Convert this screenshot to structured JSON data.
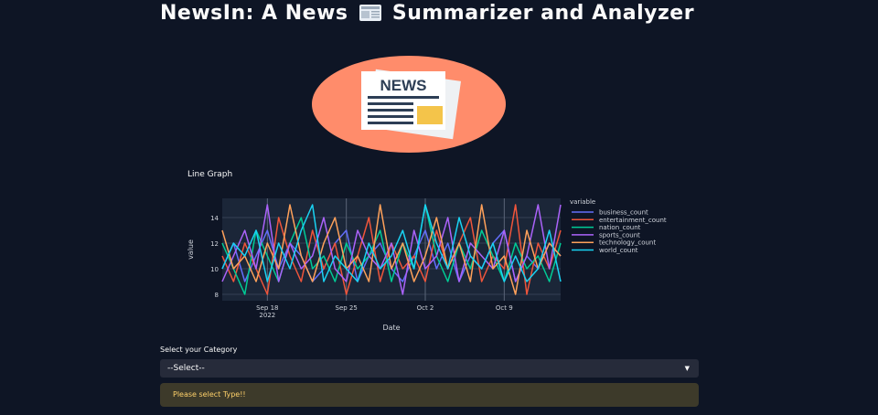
{
  "page": {
    "title_part1": "NewsIn: A News",
    "title_part2": "Summarizer and Analyzer",
    "logo_text": "NEWS"
  },
  "chart_title": "Line Graph",
  "category_select": {
    "label": "Select your Category",
    "value": "--Select--"
  },
  "alert": {
    "message": "Please select Type!!"
  },
  "colors": {
    "background": "#0e1525",
    "plot_background": "#1b2638",
    "logo_circle": "#ff8c6b",
    "alert_text": "#ffd16a",
    "alert_background": "#3d3a2a"
  },
  "icons": {
    "title_emoji": "newspaper-icon",
    "select_arrow": "caret-down-icon"
  },
  "chart_data": {
    "type": "line",
    "xlabel": "Date",
    "ylabel": "value",
    "legend_title": "variable",
    "legend_position": "right",
    "ylim": [
      7.5,
      15.5
    ],
    "y_ticks": [
      8,
      10,
      12,
      14
    ],
    "x_ticks": [
      {
        "date": "2022-09-18",
        "label": "Sep 18",
        "sublabel": "2022"
      },
      {
        "date": "2022-09-25",
        "label": "Sep 25",
        "sublabel": ""
      },
      {
        "date": "2022-10-02",
        "label": "Oct 2",
        "sublabel": ""
      },
      {
        "date": "2022-10-09",
        "label": "Oct 9",
        "sublabel": ""
      }
    ],
    "x": [
      "2022-09-14",
      "2022-09-15",
      "2022-09-16",
      "2022-09-17",
      "2022-09-18",
      "2022-09-19",
      "2022-09-20",
      "2022-09-21",
      "2022-09-22",
      "2022-09-23",
      "2022-09-24",
      "2022-09-25",
      "2022-09-26",
      "2022-09-27",
      "2022-09-28",
      "2022-09-29",
      "2022-09-30",
      "2022-10-01",
      "2022-10-02",
      "2022-10-03",
      "2022-10-04",
      "2022-10-05",
      "2022-10-06",
      "2022-10-07",
      "2022-10-08",
      "2022-10-09",
      "2022-10-10",
      "2022-10-11",
      "2022-10-12",
      "2022-10-13",
      "2022-10-14"
    ],
    "series": [
      {
        "name": "business_count",
        "color": "#636efa",
        "values": [
          10,
          12,
          9,
          11,
          13,
          10,
          12,
          11,
          9,
          10,
          12,
          13,
          9,
          11,
          12,
          10,
          9,
          11,
          13,
          10,
          12,
          9,
          11,
          10,
          12,
          13,
          9,
          11,
          10,
          12,
          11
        ]
      },
      {
        "name": "entertainment_count",
        "color": "#ef553b",
        "values": [
          11,
          9,
          12,
          10,
          8,
          14,
          11,
          9,
          13,
          10,
          12,
          8,
          11,
          14,
          9,
          12,
          10,
          11,
          9,
          13,
          10,
          12,
          14,
          9,
          11,
          10,
          15,
          8,
          12,
          10,
          13
        ]
      },
      {
        "name": "nation_count",
        "color": "#00cc96",
        "values": [
          12,
          10,
          8,
          13,
          11,
          9,
          12,
          14,
          10,
          11,
          9,
          12,
          10,
          11,
          13,
          9,
          12,
          10,
          15,
          11,
          9,
          12,
          10,
          13,
          11,
          9,
          12,
          10,
          11,
          9,
          12
        ]
      },
      {
        "name": "sports_count",
        "color": "#ab63fa",
        "values": [
          9,
          11,
          13,
          10,
          15,
          9,
          12,
          10,
          11,
          14,
          10,
          9,
          13,
          11,
          10,
          12,
          8,
          13,
          10,
          11,
          14,
          9,
          12,
          11,
          10,
          13,
          9,
          11,
          15,
          10,
          15
        ]
      },
      {
        "name": "technology_count",
        "color": "#ffa15a",
        "values": [
          13,
          10,
          11,
          9,
          12,
          10,
          15,
          11,
          9,
          12,
          14,
          10,
          11,
          9,
          15,
          10,
          12,
          9,
          11,
          14,
          10,
          12,
          9,
          15,
          10,
          11,
          8,
          13,
          10,
          12,
          11
        ]
      },
      {
        "name": "world_count",
        "color": "#19d3f3",
        "values": [
          10,
          12,
          11,
          13,
          9,
          12,
          10,
          13,
          15,
          9,
          11,
          10,
          9,
          12,
          10,
          11,
          13,
          10,
          15,
          12,
          10,
          14,
          11,
          10,
          12,
          9,
          11,
          9,
          10,
          13,
          9
        ]
      }
    ]
  }
}
